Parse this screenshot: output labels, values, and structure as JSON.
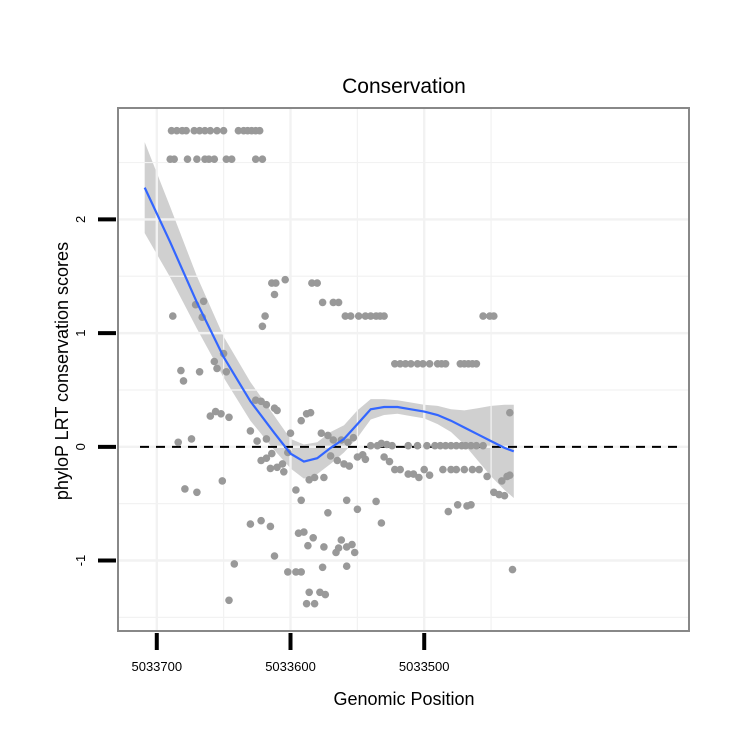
{
  "chart_data": {
    "type": "scatter",
    "title": "Conservation",
    "xlabel": "Genomic Position",
    "ylabel": "phyloP LRT conservation scores",
    "x_reversed": true,
    "xlim": [
      5033302,
      5033729
    ],
    "ylim": [
      -1.62,
      2.98
    ],
    "x_ticks": [
      5033700,
      5033600,
      5033500
    ],
    "x_tick_labels": [
      "5033700",
      "5033600",
      "5033500"
    ],
    "y_ticks": [
      -1,
      0,
      1,
      2
    ],
    "y_tick_labels": [
      "-1",
      "0",
      "1",
      "2"
    ],
    "grid": true,
    "reference_line": {
      "y": 0,
      "style": "dashed",
      "color": "#000000"
    },
    "colors": {
      "points": "#999999",
      "smooth": "#3366ff",
      "ribbon": "#d0d0d0",
      "panel_border": "#888888",
      "grid": "#f2f2f2"
    },
    "points": [
      [
        5033689,
        2.78
      ],
      [
        5033685,
        2.78
      ],
      [
        5033681,
        2.78
      ],
      [
        5033678,
        2.78
      ],
      [
        5033672,
        2.78
      ],
      [
        5033668,
        2.78
      ],
      [
        5033664,
        2.78
      ],
      [
        5033660,
        2.78
      ],
      [
        5033655,
        2.78
      ],
      [
        5033650,
        2.78
      ],
      [
        5033639,
        2.78
      ],
      [
        5033635,
        2.78
      ],
      [
        5033632,
        2.78
      ],
      [
        5033629,
        2.78
      ],
      [
        5033626,
        2.78
      ],
      [
        5033623,
        2.78
      ],
      [
        5033690,
        2.53
      ],
      [
        5033687,
        2.53
      ],
      [
        5033677,
        2.53
      ],
      [
        5033670,
        2.53
      ],
      [
        5033664,
        2.53
      ],
      [
        5033661,
        2.53
      ],
      [
        5033657,
        2.53
      ],
      [
        5033648,
        2.53
      ],
      [
        5033644,
        2.53
      ],
      [
        5033626,
        2.53
      ],
      [
        5033621,
        2.53
      ],
      [
        5033688,
        1.15
      ],
      [
        5033671,
        1.25
      ],
      [
        5033666,
        1.14
      ],
      [
        5033665,
        1.28
      ],
      [
        5033682,
        0.67
      ],
      [
        5033680,
        0.58
      ],
      [
        5033668,
        0.66
      ],
      [
        5033657,
        0.75
      ],
      [
        5033655,
        0.69
      ],
      [
        5033650,
        0.82
      ],
      [
        5033648,
        0.66
      ],
      [
        5033614,
        1.44
      ],
      [
        5033611,
        1.44
      ],
      [
        5033612,
        1.34
      ],
      [
        5033604,
        1.47
      ],
      [
        5033619,
        1.15
      ],
      [
        5033621,
        1.06
      ],
      [
        5033626,
        0.41
      ],
      [
        5033622,
        0.4
      ],
      [
        5033618,
        0.37
      ],
      [
        5033612,
        0.34
      ],
      [
        5033610,
        0.32
      ],
      [
        5033656,
        0.31
      ],
      [
        5033652,
        0.29
      ],
      [
        5033660,
        0.27
      ],
      [
        5033646,
        0.26
      ],
      [
        5033630,
        0.14
      ],
      [
        5033625,
        0.05
      ],
      [
        5033618,
        0.07
      ],
      [
        5033684,
        0.04
      ],
      [
        5033674,
        0.07
      ],
      [
        5033584,
        1.44
      ],
      [
        5033580,
        1.44
      ],
      [
        5033576,
        1.27
      ],
      [
        5033568,
        1.27
      ],
      [
        5033564,
        1.27
      ],
      [
        5033559,
        1.15
      ],
      [
        5033555,
        1.15
      ],
      [
        5033549,
        1.15
      ],
      [
        5033544,
        1.15
      ],
      [
        5033540,
        1.15
      ],
      [
        5033536,
        1.15
      ],
      [
        5033533,
        1.15
      ],
      [
        5033530,
        1.15
      ],
      [
        5033522,
        0.73
      ],
      [
        5033518,
        0.73
      ],
      [
        5033514,
        0.73
      ],
      [
        5033510,
        0.73
      ],
      [
        5033505,
        0.73
      ],
      [
        5033501,
        0.73
      ],
      [
        5033496,
        0.73
      ],
      [
        5033490,
        0.73
      ],
      [
        5033487,
        0.73
      ],
      [
        5033484,
        0.73
      ],
      [
        5033473,
        0.73
      ],
      [
        5033470,
        0.73
      ],
      [
        5033467,
        0.73
      ],
      [
        5033464,
        0.73
      ],
      [
        5033461,
        0.73
      ],
      [
        5033456,
        1.15
      ],
      [
        5033451,
        1.15
      ],
      [
        5033448,
        1.15
      ],
      [
        5033600,
        0.12
      ],
      [
        5033592,
        0.23
      ],
      [
        5033588,
        0.29
      ],
      [
        5033585,
        0.3
      ],
      [
        5033577,
        0.12
      ],
      [
        5033572,
        0.1
      ],
      [
        5033568,
        0.06
      ],
      [
        5033562,
        0.06
      ],
      [
        5033557,
        0.04
      ],
      [
        5033553,
        0.08
      ],
      [
        5033546,
        -0.07
      ],
      [
        5033540,
        0.01
      ],
      [
        5033535,
        0.01
      ],
      [
        5033532,
        0.03
      ],
      [
        5033528,
        0.02
      ],
      [
        5033524,
        0.01
      ],
      [
        5033512,
        0.01
      ],
      [
        5033505,
        0.01
      ],
      [
        5033498,
        0.01
      ],
      [
        5033492,
        0.01
      ],
      [
        5033488,
        0.01
      ],
      [
        5033484,
        0.01
      ],
      [
        5033480,
        0.01
      ],
      [
        5033476,
        0.01
      ],
      [
        5033472,
        0.01
      ],
      [
        5033469,
        0.01
      ],
      [
        5033465,
        0.01
      ],
      [
        5033461,
        0.01
      ],
      [
        5033456,
        0.01
      ],
      [
        5033622,
        -0.12
      ],
      [
        5033614,
        -0.06
      ],
      [
        5033606,
        -0.15
      ],
      [
        5033602,
        -0.05
      ],
      [
        5033586,
        -0.29
      ],
      [
        5033582,
        -0.27
      ],
      [
        5033570,
        -0.08
      ],
      [
        5033565,
        -0.12
      ],
      [
        5033560,
        -0.15
      ],
      [
        5033556,
        -0.17
      ],
      [
        5033550,
        -0.09
      ],
      [
        5033544,
        -0.11
      ],
      [
        5033530,
        -0.09
      ],
      [
        5033526,
        -0.13
      ],
      [
        5033522,
        -0.2
      ],
      [
        5033518,
        -0.2
      ],
      [
        5033512,
        -0.24
      ],
      [
        5033508,
        -0.24
      ],
      [
        5033504,
        -0.27
      ],
      [
        5033500,
        -0.2
      ],
      [
        5033496,
        -0.25
      ],
      [
        5033486,
        -0.2
      ],
      [
        5033480,
        -0.2
      ],
      [
        5033476,
        -0.2
      ],
      [
        5033470,
        -0.2
      ],
      [
        5033464,
        -0.2
      ],
      [
        5033459,
        -0.2
      ],
      [
        5033453,
        -0.26
      ],
      [
        5033448,
        -0.4
      ],
      [
        5033444,
        -0.42
      ],
      [
        5033440,
        -0.43
      ],
      [
        5033438,
        -0.26
      ],
      [
        5033679,
        -0.37
      ],
      [
        5033670,
        -0.4
      ],
      [
        5033651,
        -0.3
      ],
      [
        5033618,
        -0.1
      ],
      [
        5033615,
        -0.19
      ],
      [
        5033610,
        -0.18
      ],
      [
        5033605,
        -0.22
      ],
      [
        5033596,
        -0.38
      ],
      [
        5033592,
        -0.47
      ],
      [
        5033575,
        -0.27
      ],
      [
        5033558,
        -0.47
      ],
      [
        5033550,
        -0.55
      ],
      [
        5033536,
        -0.48
      ],
      [
        5033532,
        -0.67
      ],
      [
        5033482,
        -0.57
      ],
      [
        5033475,
        -0.51
      ],
      [
        5033468,
        -0.52
      ],
      [
        5033465,
        -0.51
      ],
      [
        5033442,
        -0.3
      ],
      [
        5033436,
        -0.25
      ],
      [
        5033630,
        -0.68
      ],
      [
        5033622,
        -0.65
      ],
      [
        5033615,
        -0.7
      ],
      [
        5033612,
        -0.96
      ],
      [
        5033594,
        -0.76
      ],
      [
        5033590,
        -0.75
      ],
      [
        5033587,
        -0.87
      ],
      [
        5033583,
        -0.8
      ],
      [
        5033575,
        -0.88
      ],
      [
        5033572,
        -0.58
      ],
      [
        5033566,
        -0.93
      ],
      [
        5033562,
        -0.82
      ],
      [
        5033558,
        -0.88
      ],
      [
        5033552,
        -0.93
      ],
      [
        5033554,
        -0.86
      ],
      [
        5033564,
        -0.89
      ],
      [
        5033646,
        -1.35
      ],
      [
        5033642,
        -1.03
      ],
      [
        5033602,
        -1.1
      ],
      [
        5033592,
        -1.1
      ],
      [
        5033586,
        -1.28
      ],
      [
        5033582,
        -1.38
      ],
      [
        5033578,
        -1.28
      ],
      [
        5033574,
        -1.3
      ],
      [
        5033576,
        -1.06
      ],
      [
        5033558,
        -1.05
      ],
      [
        5033596,
        -1.1
      ],
      [
        5033588,
        -1.38
      ],
      [
        5033434,
        -1.08
      ],
      [
        5033436,
        0.3
      ]
    ],
    "smooth": {
      "x": [
        5033709,
        5033690,
        5033670,
        5033650,
        5033630,
        5033612,
        5033600,
        5033590,
        5033580,
        5033570,
        5033560,
        5033550,
        5033540,
        5033530,
        5033520,
        5033510,
        5033500,
        5033490,
        5033480,
        5033470,
        5033460,
        5033450,
        5033440,
        5033433
      ],
      "y": [
        2.28,
        1.8,
        1.27,
        0.79,
        0.4,
        0.12,
        -0.06,
        -0.13,
        -0.1,
        -0.01,
        0.07,
        0.2,
        0.33,
        0.35,
        0.35,
        0.33,
        0.31,
        0.28,
        0.23,
        0.17,
        0.11,
        0.05,
        -0.01,
        -0.04
      ],
      "lower": [
        1.88,
        1.49,
        1.04,
        0.61,
        0.23,
        -0.03,
        -0.19,
        -0.28,
        -0.24,
        -0.15,
        -0.05,
        0.08,
        0.24,
        0.28,
        0.29,
        0.27,
        0.25,
        0.2,
        0.13,
        0.02,
        -0.12,
        -0.26,
        -0.38,
        -0.45
      ],
      "upper": [
        2.68,
        2.11,
        1.5,
        0.97,
        0.57,
        0.27,
        0.07,
        0.02,
        0.04,
        0.13,
        0.19,
        0.32,
        0.42,
        0.42,
        0.41,
        0.39,
        0.37,
        0.36,
        0.33,
        0.32,
        0.34,
        0.36,
        0.37,
        0.37
      ]
    }
  }
}
